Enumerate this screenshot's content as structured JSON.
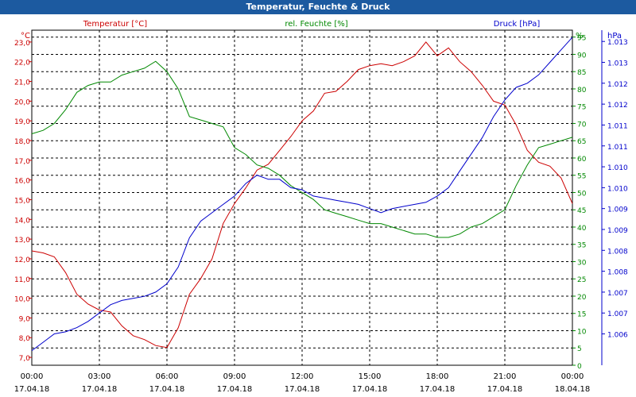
{
  "window": {
    "title": "Temperatur, Feuchte & Druck"
  },
  "colors": {
    "temperature": "#cc0000",
    "humidity": "#008800",
    "pressure": "#0000cc",
    "axis": "#000000",
    "grid": "#000000",
    "title_bg": "#1c5aa0"
  },
  "chart_data": {
    "type": "line",
    "title": "Temperatur, Feuchte & Druck",
    "grid": true,
    "x_labels": [
      {
        "time": "00:00",
        "date": "17.04.18"
      },
      {
        "time": "03:00",
        "date": "17.04.18"
      },
      {
        "time": "06:00",
        "date": "17.04.18"
      },
      {
        "time": "09:00",
        "date": "17.04.18"
      },
      {
        "time": "12:00",
        "date": "17.04.18"
      },
      {
        "time": "15:00",
        "date": "17.04.18"
      },
      {
        "time": "18:00",
        "date": "17.04.18"
      },
      {
        "time": "21:00",
        "date": "17.04.18"
      },
      {
        "time": "00:00",
        "date": "18.04.18"
      }
    ],
    "x_range_hours": [
      0,
      24
    ],
    "axes": {
      "temperature": {
        "label": "Temperatur [°C]",
        "unit": "°C",
        "range": [
          6.6,
          23.6
        ],
        "ticks": [
          "23,0",
          "22,0",
          "21,0",
          "20,0",
          "19,0",
          "18,0",
          "17,0",
          "16,0",
          "15,0",
          "14,0",
          "13,0",
          "12,0",
          "11,0",
          "10,0",
          "9,0",
          "8,0",
          "7,0"
        ]
      },
      "humidity": {
        "label": "rel. Feuchte [%]",
        "unit": "%",
        "range": [
          0,
          97
        ],
        "ticks": [
          "95",
          "90",
          "85",
          "80",
          "75",
          "70",
          "65",
          "60",
          "55",
          "50",
          "45",
          "40",
          "35",
          "30",
          "25",
          "20",
          "15",
          "10",
          "5",
          "0"
        ]
      },
      "pressure": {
        "label": "Druck [hPa]",
        "unit": "hPa",
        "range": [
          1005.55,
          1013.57
        ],
        "ticks": [
          "1.013",
          "1.013",
          "1.012",
          "1.012",
          "1.011",
          "1.011",
          "1.010",
          "1.010",
          "1.009",
          "1.009",
          "1.008",
          "1.008",
          "1.007",
          "1.007",
          "1.006"
        ]
      }
    },
    "series": [
      {
        "name": "Temperatur [°C]",
        "axis": "temperature",
        "points": [
          [
            0,
            12.4
          ],
          [
            0.5,
            12.3
          ],
          [
            1,
            12.1
          ],
          [
            1.5,
            11.3
          ],
          [
            2,
            10.2
          ],
          [
            2.5,
            9.7
          ],
          [
            3,
            9.4
          ],
          [
            3.5,
            9.3
          ],
          [
            4,
            8.6
          ],
          [
            4.5,
            8.1
          ],
          [
            5,
            7.9
          ],
          [
            5.5,
            7.6
          ],
          [
            6,
            7.5
          ],
          [
            6.5,
            8.5
          ],
          [
            7,
            10.2
          ],
          [
            7.5,
            11.0
          ],
          [
            8,
            12.0
          ],
          [
            8.5,
            13.8
          ],
          [
            9,
            14.8
          ],
          [
            9.5,
            15.6
          ],
          [
            10,
            16.5
          ],
          [
            10.5,
            16.8
          ],
          [
            11,
            17.5
          ],
          [
            11.5,
            18.2
          ],
          [
            12,
            19.0
          ],
          [
            12.5,
            19.5
          ],
          [
            13,
            20.4
          ],
          [
            13.5,
            20.5
          ],
          [
            14,
            21.0
          ],
          [
            14.5,
            21.6
          ],
          [
            15,
            21.8
          ],
          [
            15.5,
            21.9
          ],
          [
            16,
            21.8
          ],
          [
            16.5,
            22.0
          ],
          [
            17,
            22.3
          ],
          [
            17.5,
            23.0
          ],
          [
            18,
            22.3
          ],
          [
            18.5,
            22.7
          ],
          [
            19,
            22.0
          ],
          [
            19.5,
            21.5
          ],
          [
            20,
            20.8
          ],
          [
            20.5,
            20.0
          ],
          [
            21,
            19.8
          ],
          [
            21.5,
            18.8
          ],
          [
            22,
            17.5
          ],
          [
            22.5,
            16.9
          ],
          [
            23,
            16.7
          ],
          [
            23.5,
            16.1
          ],
          [
            24,
            14.8
          ]
        ]
      },
      {
        "name": "rel. Feuchte [%]",
        "axis": "humidity",
        "points": [
          [
            0,
            67
          ],
          [
            0.5,
            68
          ],
          [
            1,
            70
          ],
          [
            1.5,
            74
          ],
          [
            2,
            79
          ],
          [
            2.5,
            81
          ],
          [
            3,
            82
          ],
          [
            3.5,
            82
          ],
          [
            4,
            84
          ],
          [
            4.5,
            85
          ],
          [
            5,
            86
          ],
          [
            5.5,
            88
          ],
          [
            6,
            85
          ],
          [
            6.5,
            80
          ],
          [
            7,
            72
          ],
          [
            7.5,
            71
          ],
          [
            8,
            70
          ],
          [
            8.5,
            69
          ],
          [
            9,
            63
          ],
          [
            9.5,
            61
          ],
          [
            10,
            58
          ],
          [
            10.5,
            57
          ],
          [
            11,
            55
          ],
          [
            11.5,
            52
          ],
          [
            12,
            50
          ],
          [
            12.5,
            48
          ],
          [
            13,
            45
          ],
          [
            13.5,
            44
          ],
          [
            14,
            43
          ],
          [
            14.5,
            42
          ],
          [
            15,
            41
          ],
          [
            15.5,
            41
          ],
          [
            16,
            40
          ],
          [
            16.5,
            39
          ],
          [
            17,
            38
          ],
          [
            17.5,
            38
          ],
          [
            18,
            37
          ],
          [
            18.5,
            37
          ],
          [
            19,
            38
          ],
          [
            19.5,
            40
          ],
          [
            20,
            41
          ],
          [
            20.5,
            43
          ],
          [
            21,
            45
          ],
          [
            21.5,
            52
          ],
          [
            22,
            58
          ],
          [
            22.5,
            63
          ],
          [
            23,
            64
          ],
          [
            23.5,
            65
          ],
          [
            24,
            66
          ]
        ]
      },
      {
        "name": "Druck [hPa]",
        "axis": "pressure",
        "points": [
          [
            0,
            1005.9
          ],
          [
            0.5,
            1006.1
          ],
          [
            1,
            1006.3
          ],
          [
            1.5,
            1006.35
          ],
          [
            2,
            1006.45
          ],
          [
            2.5,
            1006.6
          ],
          [
            3,
            1006.8
          ],
          [
            3.5,
            1007.0
          ],
          [
            4,
            1007.1
          ],
          [
            4.5,
            1007.15
          ],
          [
            5,
            1007.2
          ],
          [
            5.5,
            1007.3
          ],
          [
            6,
            1007.5
          ],
          [
            6.5,
            1007.9
          ],
          [
            7,
            1008.6
          ],
          [
            7.5,
            1009.0
          ],
          [
            8,
            1009.2
          ],
          [
            8.5,
            1009.4
          ],
          [
            9,
            1009.6
          ],
          [
            9.5,
            1009.9
          ],
          [
            10,
            1010.1
          ],
          [
            10.5,
            1010.0
          ],
          [
            11,
            1010.0
          ],
          [
            11.5,
            1009.8
          ],
          [
            12,
            1009.75
          ],
          [
            12.5,
            1009.6
          ],
          [
            13,
            1009.55
          ],
          [
            13.5,
            1009.5
          ],
          [
            14,
            1009.45
          ],
          [
            14.5,
            1009.4
          ],
          [
            15,
            1009.3
          ],
          [
            15.5,
            1009.2
          ],
          [
            16,
            1009.3
          ],
          [
            16.5,
            1009.35
          ],
          [
            17,
            1009.4
          ],
          [
            17.5,
            1009.45
          ],
          [
            18,
            1009.6
          ],
          [
            18.5,
            1009.8
          ],
          [
            19,
            1010.2
          ],
          [
            19.5,
            1010.6
          ],
          [
            20,
            1011.0
          ],
          [
            20.5,
            1011.5
          ],
          [
            21,
            1011.9
          ],
          [
            21.5,
            1012.2
          ],
          [
            22,
            1012.3
          ],
          [
            22.5,
            1012.5
          ],
          [
            23,
            1012.8
          ],
          [
            23.5,
            1013.1
          ],
          [
            24,
            1013.4
          ]
        ]
      }
    ]
  }
}
